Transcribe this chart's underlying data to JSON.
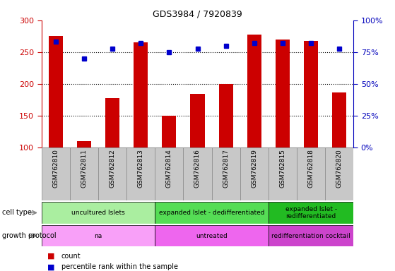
{
  "title": "GDS3984 / 7920839",
  "samples": [
    "GSM762810",
    "GSM762811",
    "GSM762812",
    "GSM762813",
    "GSM762814",
    "GSM762816",
    "GSM762817",
    "GSM762819",
    "GSM762815",
    "GSM762818",
    "GSM762820"
  ],
  "counts": [
    275,
    110,
    178,
    265,
    150,
    184,
    200,
    278,
    270,
    268,
    187
  ],
  "percentiles": [
    83,
    70,
    78,
    82,
    75,
    78,
    80,
    82,
    82,
    82,
    78
  ],
  "ylim_left": [
    100,
    300
  ],
  "ylim_right": [
    0,
    100
  ],
  "yticks_left": [
    100,
    150,
    200,
    250,
    300
  ],
  "yticks_right": [
    0,
    25,
    50,
    75,
    100
  ],
  "ytick_labels_right": [
    "0%",
    "25%",
    "50%",
    "75%",
    "100%"
  ],
  "cell_type_groups": [
    {
      "label": "uncultured Islets",
      "start": 0,
      "end": 3,
      "color": "#AAEEA0"
    },
    {
      "label": "expanded Islet - dedifferentiated",
      "start": 4,
      "end": 7,
      "color": "#55DD55"
    },
    {
      "label": "expanded Islet -\nredifferentiated",
      "start": 8,
      "end": 10,
      "color": "#22BB22"
    }
  ],
  "growth_protocol_groups": [
    {
      "label": "na",
      "start": 0,
      "end": 3,
      "color": "#F8A0F8"
    },
    {
      "label": "untreated",
      "start": 4,
      "end": 7,
      "color": "#EE66EE"
    },
    {
      "label": "redifferentiation cocktail",
      "start": 8,
      "end": 10,
      "color": "#CC44CC"
    }
  ],
  "bar_color": "#CC0000",
  "dot_color": "#0000CC",
  "left_axis_color": "#CC0000",
  "right_axis_color": "#0000BB",
  "tick_bg_color": "#C8C8C8",
  "tick_border_color": "#888888"
}
